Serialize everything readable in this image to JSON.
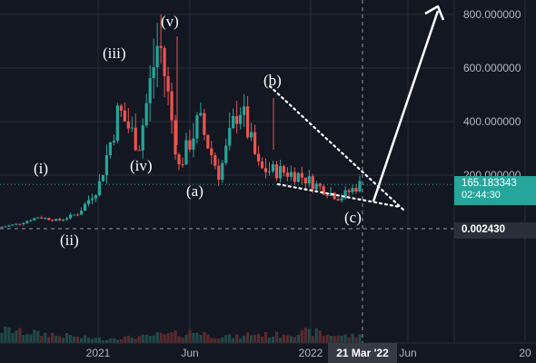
{
  "chart_data": {
    "type": "candlestick",
    "y_axis": {
      "tick_labels": [
        "800.000000",
        "600.000000",
        "400.000000",
        "200.000000"
      ],
      "tick_values": [
        800,
        600,
        400,
        200
      ]
    },
    "x_axis": {
      "tick_labels": [
        "2021",
        "Jun",
        "2022",
        "Jun",
        "20"
      ],
      "hover_label": "21 Mar '22"
    },
    "last_price": {
      "value": "165.183343",
      "countdown": "02:44:30",
      "y": 165.18
    },
    "crosshair_price": {
      "value": "0.002430"
    },
    "wave_labels": [
      "(i)",
      "(ii)",
      "(iii)",
      "(iv)",
      "(v)",
      "(a)",
      "(b)",
      "(c)"
    ],
    "price_path": [
      4,
      18,
      44,
      30,
      58,
      158,
      442,
      312,
      715,
      230,
      405,
      200,
      468,
      220,
      215,
      200,
      155,
      115,
      165
    ],
    "volume": [
      14,
      12,
      10,
      8,
      6,
      5,
      6,
      7,
      9,
      10,
      12,
      8,
      7,
      10,
      9,
      11,
      12,
      9,
      8
    ],
    "colors": {
      "up": "#26a69a",
      "down": "#ef5350",
      "background": "#131722",
      "grid": "#2a2e39",
      "text": "#b2b5be"
    }
  }
}
